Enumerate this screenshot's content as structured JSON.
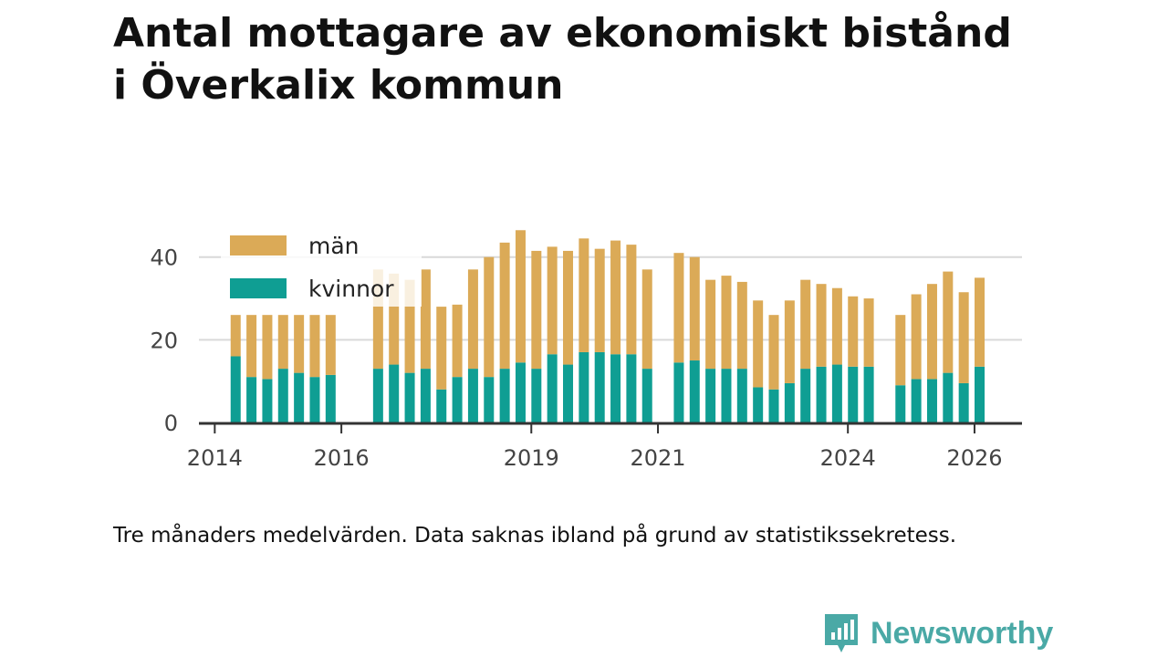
{
  "header": {
    "title_line1": "Antal mottagare av ekonomiskt bistånd",
    "title_line2": "i Överkalix kommun"
  },
  "note": "Tre månaders medelvärden. Data saknas ibland på grund av statistikssekretess.",
  "brand": {
    "name": "Newsworthy",
    "icon": "newsworthy-logo-icon",
    "color": "#4aa9a6"
  },
  "colors": {
    "man": "#dbaa57",
    "kvinnor": "#0f9e93",
    "grid": "#d9d9d9",
    "axis": "#333333"
  },
  "chart_data": {
    "type": "bar",
    "stacked": true,
    "title": "Antal mottagare av ekonomiskt bistånd i Överkalix kommun",
    "xlabel": "",
    "ylabel": "",
    "ylim": [
      0,
      47
    ],
    "yticks": [
      0,
      20,
      40
    ],
    "xlim": [
      2013.75,
      2026.75
    ],
    "xticks": [
      2014,
      2016,
      2019,
      2021,
      2024,
      2026
    ],
    "legend": {
      "position": "top-left",
      "entries": [
        "män",
        "kvinnor"
      ]
    },
    "grid": true,
    "series": [
      {
        "name": "kvinnor",
        "points": [
          [
            2014.33,
            16
          ],
          [
            2014.58,
            11
          ],
          [
            2014.83,
            10.5
          ],
          [
            2015.08,
            13
          ],
          [
            2015.33,
            12
          ],
          [
            2015.58,
            11
          ],
          [
            2015.83,
            11.5
          ],
          [
            2016.58,
            13
          ],
          [
            2016.83,
            14
          ],
          [
            2017.08,
            12
          ],
          [
            2017.33,
            13
          ],
          [
            2017.58,
            8
          ],
          [
            2017.83,
            11
          ],
          [
            2018.08,
            13
          ],
          [
            2018.33,
            11
          ],
          [
            2018.58,
            13
          ],
          [
            2018.83,
            14.5
          ],
          [
            2019.08,
            13
          ],
          [
            2019.33,
            16.5
          ],
          [
            2019.58,
            14
          ],
          [
            2019.83,
            17
          ],
          [
            2020.08,
            17
          ],
          [
            2020.33,
            16.5
          ],
          [
            2020.58,
            16.5
          ],
          [
            2020.83,
            13
          ],
          [
            2021.33,
            14.5
          ],
          [
            2021.58,
            15
          ],
          [
            2021.83,
            13
          ],
          [
            2022.08,
            13
          ],
          [
            2022.33,
            13
          ],
          [
            2022.58,
            8.5
          ],
          [
            2022.83,
            8
          ],
          [
            2023.08,
            9.5
          ],
          [
            2023.33,
            13
          ],
          [
            2023.58,
            13.5
          ],
          [
            2023.83,
            14
          ],
          [
            2024.08,
            13.5
          ],
          [
            2024.33,
            13.5
          ],
          [
            2024.83,
            9
          ],
          [
            2025.08,
            10.5
          ],
          [
            2025.33,
            10.5
          ],
          [
            2025.58,
            12
          ],
          [
            2025.83,
            9.5
          ],
          [
            2026.08,
            13.5
          ]
        ]
      },
      {
        "name": "män",
        "points": [
          [
            2014.33,
            10
          ],
          [
            2014.58,
            15
          ],
          [
            2014.83,
            15.5
          ],
          [
            2015.08,
            13
          ],
          [
            2015.33,
            14
          ],
          [
            2015.58,
            15
          ],
          [
            2015.83,
            14.5
          ],
          [
            2016.58,
            24
          ],
          [
            2016.83,
            22
          ],
          [
            2017.08,
            22.5
          ],
          [
            2017.33,
            24
          ],
          [
            2017.58,
            20
          ],
          [
            2017.83,
            17.5
          ],
          [
            2018.08,
            24
          ],
          [
            2018.33,
            29
          ],
          [
            2018.58,
            30.5
          ],
          [
            2018.83,
            32
          ],
          [
            2019.08,
            28.5
          ],
          [
            2019.33,
            26
          ],
          [
            2019.58,
            27.5
          ],
          [
            2019.83,
            27.5
          ],
          [
            2020.08,
            25
          ],
          [
            2020.33,
            27.5
          ],
          [
            2020.58,
            26.5
          ],
          [
            2020.83,
            24
          ],
          [
            2021.33,
            26.5
          ],
          [
            2021.58,
            25
          ],
          [
            2021.83,
            21.5
          ],
          [
            2022.08,
            22.5
          ],
          [
            2022.33,
            21
          ],
          [
            2022.58,
            21
          ],
          [
            2022.83,
            18
          ],
          [
            2023.08,
            20
          ],
          [
            2023.33,
            21.5
          ],
          [
            2023.58,
            20
          ],
          [
            2023.83,
            18.5
          ],
          [
            2024.08,
            17
          ],
          [
            2024.33,
            16.5
          ],
          [
            2024.83,
            17
          ],
          [
            2025.08,
            20.5
          ],
          [
            2025.33,
            23
          ],
          [
            2025.58,
            24.5
          ],
          [
            2025.83,
            22
          ],
          [
            2026.08,
            21.5
          ]
        ]
      }
    ]
  }
}
